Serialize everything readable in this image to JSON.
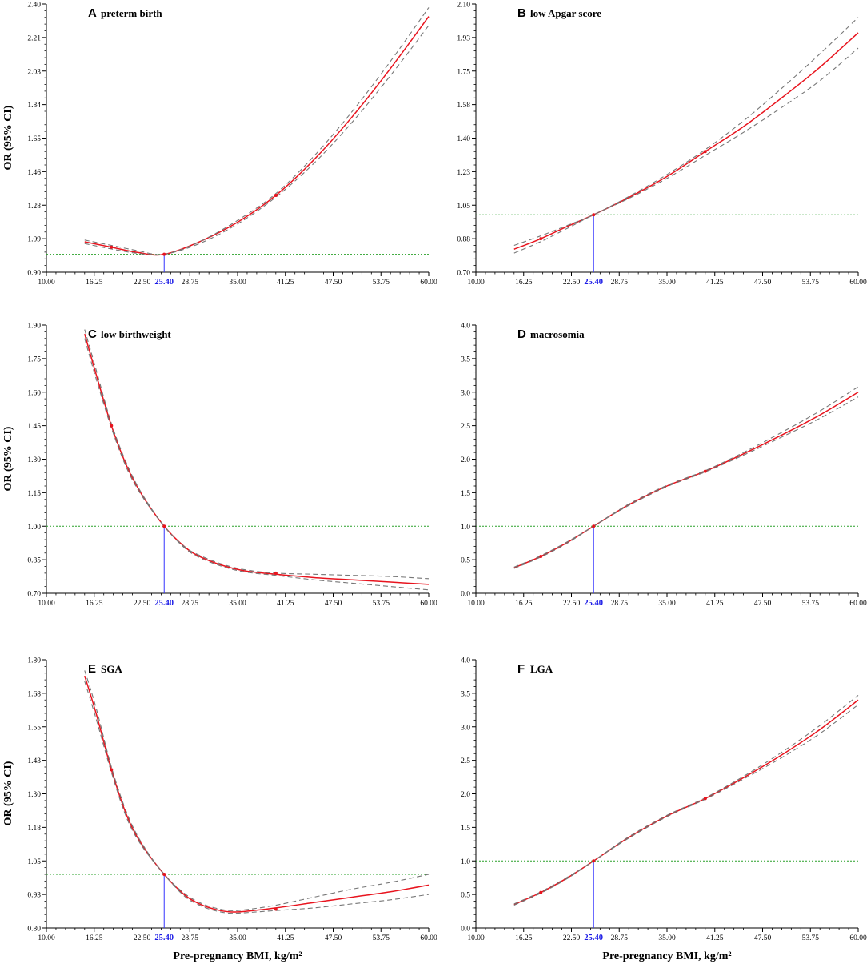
{
  "figure": {
    "ylabel": "OR (95% CI)",
    "xlabel": "Pre-pregnancy BMI, kg/m²",
    "ref_value_label": "25.40"
  },
  "chart_data": [
    {
      "type": "line",
      "letter": "A",
      "title": "preterm birth",
      "xlim": [
        10,
        60
      ],
      "ylim": [
        0.9,
        2.4
      ],
      "x_ticks": [
        "10.00",
        "16.25",
        "22.50",
        "28.75",
        "35.00",
        "41.25",
        "47.50",
        "53.75",
        "60.00"
      ],
      "y_ticks": [
        "0.90",
        "1.09",
        "1.28",
        "1.46",
        "1.65",
        "1.84",
        "2.03",
        "2.21",
        "2.40"
      ],
      "reference_x": 25.4,
      "reference_y": 1.0,
      "marked_points": {
        "x": [
          18.5,
          25.4,
          40.0
        ],
        "y": [
          1.04,
          1.0,
          1.33
        ]
      },
      "series": [
        {
          "role": "estimate",
          "color": "#e8141e",
          "x": [
            15,
            18.5,
            22,
            25.4,
            30,
            35,
            40,
            45,
            50,
            55,
            60
          ],
          "y": [
            1.07,
            1.04,
            1.01,
            1.0,
            1.07,
            1.18,
            1.33,
            1.53,
            1.77,
            2.04,
            2.33
          ]
        },
        {
          "role": "upper",
          "color": "#777777",
          "x": [
            15,
            18.5,
            22,
            25.4,
            30,
            35,
            40,
            45,
            50,
            55,
            60
          ],
          "y": [
            1.08,
            1.05,
            1.02,
            1.0,
            1.07,
            1.19,
            1.34,
            1.55,
            1.8,
            2.08,
            2.38
          ]
        },
        {
          "role": "lower",
          "color": "#777777",
          "x": [
            15,
            18.5,
            22,
            25.4,
            30,
            35,
            40,
            45,
            50,
            55,
            60
          ],
          "y": [
            1.06,
            1.03,
            1.005,
            1.0,
            1.06,
            1.17,
            1.32,
            1.51,
            1.74,
            2.0,
            2.28
          ]
        }
      ]
    },
    {
      "type": "line",
      "letter": "B",
      "title": "low Apgar score",
      "xlim": [
        10,
        60
      ],
      "ylim": [
        0.7,
        2.1
      ],
      "x_ticks": [
        "10.00",
        "16.25",
        "22.50",
        "28.75",
        "35.00",
        "41.25",
        "47.50",
        "53.75",
        "60.00"
      ],
      "y_ticks": [
        "0.70",
        "0.88",
        "1.05",
        "1.23",
        "1.40",
        "1.58",
        "1.75",
        "1.93",
        "2.10"
      ],
      "reference_x": 25.4,
      "reference_y": 1.0,
      "marked_points": {
        "x": [
          18.5,
          25.4,
          40.0
        ],
        "y": [
          0.875,
          1.0,
          1.33
        ]
      },
      "series": [
        {
          "role": "estimate",
          "color": "#e8141e",
          "x": [
            15,
            18.5,
            22,
            25.4,
            30,
            35,
            40,
            45,
            50,
            55,
            60
          ],
          "y": [
            0.82,
            0.875,
            0.94,
            1.0,
            1.09,
            1.2,
            1.33,
            1.46,
            1.61,
            1.77,
            1.95
          ]
        },
        {
          "role": "upper",
          "color": "#777777",
          "x": [
            15,
            18.5,
            22,
            25.4,
            30,
            35,
            40,
            45,
            50,
            55,
            60
          ],
          "y": [
            0.84,
            0.89,
            0.945,
            1.0,
            1.095,
            1.21,
            1.34,
            1.49,
            1.66,
            1.84,
            2.03
          ]
        },
        {
          "role": "lower",
          "color": "#777777",
          "x": [
            15,
            18.5,
            22,
            25.4,
            30,
            35,
            40,
            45,
            50,
            55,
            60
          ],
          "y": [
            0.8,
            0.86,
            0.93,
            1.0,
            1.085,
            1.19,
            1.31,
            1.43,
            1.56,
            1.7,
            1.87
          ]
        }
      ]
    },
    {
      "type": "line",
      "letter": "C",
      "title": "low birthweight",
      "xlim": [
        10,
        60
      ],
      "ylim": [
        0.7,
        1.9
      ],
      "x_ticks": [
        "10.00",
        "16.25",
        "22.50",
        "28.75",
        "35.00",
        "41.25",
        "47.50",
        "53.75",
        "60.00"
      ],
      "y_ticks": [
        "0.70",
        "0.85",
        "1.00",
        "1.15",
        "1.30",
        "1.45",
        "1.60",
        "1.75",
        "1.90"
      ],
      "reference_x": 25.4,
      "reference_y": 1.0,
      "marked_points": {
        "x": [
          18.5,
          25.4,
          40.0
        ],
        "y": [
          1.45,
          1.0,
          0.79
        ]
      },
      "series": [
        {
          "role": "estimate",
          "color": "#e8141e",
          "x": [
            15,
            16.5,
            18.5,
            20.5,
            22.5,
            25.4,
            28,
            30,
            33,
            36,
            40,
            45,
            50,
            55,
            60
          ],
          "y": [
            1.86,
            1.68,
            1.45,
            1.27,
            1.14,
            1.0,
            0.91,
            0.865,
            0.825,
            0.8,
            0.785,
            0.77,
            0.76,
            0.75,
            0.74
          ]
        },
        {
          "role": "upper",
          "color": "#777777",
          "x": [
            15,
            16.5,
            18.5,
            20.5,
            22.5,
            25.4,
            28,
            30,
            33,
            36,
            40,
            45,
            50,
            55,
            60
          ],
          "y": [
            1.88,
            1.7,
            1.46,
            1.28,
            1.145,
            1.0,
            0.91,
            0.87,
            0.83,
            0.805,
            0.79,
            0.785,
            0.78,
            0.775,
            0.765
          ]
        },
        {
          "role": "lower",
          "color": "#777777",
          "x": [
            15,
            16.5,
            18.5,
            20.5,
            22.5,
            25.4,
            28,
            30,
            33,
            36,
            40,
            45,
            50,
            55,
            60
          ],
          "y": [
            1.84,
            1.66,
            1.44,
            1.26,
            1.135,
            1.0,
            0.905,
            0.86,
            0.82,
            0.795,
            0.78,
            0.76,
            0.745,
            0.73,
            0.715
          ]
        }
      ]
    },
    {
      "type": "line",
      "letter": "D",
      "title": "macrosomia",
      "xlim": [
        10,
        60
      ],
      "ylim": [
        0.0,
        4.0
      ],
      "x_ticks": [
        "10.00",
        "16.25",
        "22.50",
        "28.75",
        "35.00",
        "41.25",
        "47.50",
        "53.75",
        "60.00"
      ],
      "y_ticks": [
        "0.0",
        "0.5",
        "1.0",
        "1.5",
        "2.0",
        "2.5",
        "3.0",
        "3.5",
        "4.0"
      ],
      "reference_x": 25.4,
      "reference_y": 1.0,
      "marked_points": {
        "x": [
          18.5,
          25.4,
          40.0
        ],
        "y": [
          0.55,
          1.0,
          1.82
        ]
      },
      "series": [
        {
          "role": "estimate",
          "color": "#e8141e",
          "x": [
            15,
            18.5,
            22,
            25.4,
            30,
            35,
            40,
            45,
            50,
            55,
            60
          ],
          "y": [
            0.38,
            0.55,
            0.76,
            1.0,
            1.32,
            1.6,
            1.82,
            2.08,
            2.36,
            2.66,
            3.0
          ]
        },
        {
          "role": "upper",
          "color": "#777777",
          "x": [
            15,
            18.5,
            22,
            25.4,
            30,
            35,
            40,
            45,
            50,
            55,
            60
          ],
          "y": [
            0.39,
            0.56,
            0.77,
            1.0,
            1.33,
            1.61,
            1.83,
            2.1,
            2.4,
            2.72,
            3.08
          ]
        },
        {
          "role": "lower",
          "color": "#777777",
          "x": [
            15,
            18.5,
            22,
            25.4,
            30,
            35,
            40,
            45,
            50,
            55,
            60
          ],
          "y": [
            0.37,
            0.54,
            0.75,
            1.0,
            1.31,
            1.59,
            1.81,
            2.06,
            2.33,
            2.61,
            2.93
          ]
        }
      ]
    },
    {
      "type": "line",
      "letter": "E",
      "title": "SGA",
      "xlim": [
        10,
        60
      ],
      "ylim": [
        0.8,
        1.8
      ],
      "x_ticks": [
        "10.00",
        "16.25",
        "22.50",
        "28.75",
        "35.00",
        "41.25",
        "47.50",
        "53.75",
        "60.00"
      ],
      "y_ticks": [
        "0.80",
        "0.93",
        "1.05",
        "1.18",
        "1.30",
        "1.43",
        "1.55",
        "1.68",
        "1.80"
      ],
      "reference_x": 25.4,
      "reference_y": 1.0,
      "marked_points": {
        "x": [
          18.5,
          25.4,
          40.0
        ],
        "y": [
          1.39,
          1.0,
          0.87
        ]
      },
      "series": [
        {
          "role": "estimate",
          "color": "#e8141e",
          "x": [
            15,
            16.5,
            18.5,
            20.5,
            22.5,
            25.4,
            28,
            30,
            32,
            34,
            36,
            40,
            45,
            50,
            55,
            60
          ],
          "y": [
            1.74,
            1.6,
            1.39,
            1.22,
            1.11,
            1.0,
            0.925,
            0.89,
            0.87,
            0.86,
            0.862,
            0.875,
            0.895,
            0.915,
            0.935,
            0.96
          ]
        },
        {
          "role": "upper",
          "color": "#777777",
          "x": [
            15,
            16.5,
            18.5,
            20.5,
            22.5,
            25.4,
            28,
            30,
            32,
            34,
            36,
            40,
            45,
            50,
            55,
            60
          ],
          "y": [
            1.76,
            1.62,
            1.4,
            1.23,
            1.115,
            1.0,
            0.93,
            0.895,
            0.875,
            0.865,
            0.868,
            0.885,
            0.915,
            0.945,
            0.97,
            1.0
          ]
        },
        {
          "role": "lower",
          "color": "#777777",
          "x": [
            15,
            16.5,
            18.5,
            20.5,
            22.5,
            25.4,
            28,
            30,
            32,
            34,
            36,
            40,
            45,
            50,
            55,
            60
          ],
          "y": [
            1.72,
            1.58,
            1.38,
            1.21,
            1.105,
            1.0,
            0.92,
            0.885,
            0.865,
            0.855,
            0.857,
            0.865,
            0.875,
            0.89,
            0.905,
            0.925
          ]
        }
      ]
    },
    {
      "type": "line",
      "letter": "F",
      "title": "LGA",
      "xlim": [
        10,
        60
      ],
      "ylim": [
        0.0,
        4.0
      ],
      "x_ticks": [
        "10.00",
        "16.25",
        "22.50",
        "28.75",
        "35.00",
        "41.25",
        "47.50",
        "53.75",
        "60.00"
      ],
      "y_ticks": [
        "0.0",
        "0.5",
        "1.0",
        "1.5",
        "2.0",
        "2.5",
        "3.0",
        "3.5",
        "4.0"
      ],
      "reference_x": 25.4,
      "reference_y": 1.0,
      "marked_points": {
        "x": [
          18.5,
          25.4,
          40.0
        ],
        "y": [
          0.53,
          1.0,
          1.93
        ]
      },
      "series": [
        {
          "role": "estimate",
          "color": "#e8141e",
          "x": [
            15,
            18.5,
            22,
            25.4,
            30,
            35,
            40,
            45,
            50,
            55,
            60
          ],
          "y": [
            0.35,
            0.53,
            0.75,
            1.0,
            1.35,
            1.67,
            1.93,
            2.24,
            2.58,
            2.96,
            3.4
          ]
        },
        {
          "role": "upper",
          "color": "#777777",
          "x": [
            15,
            18.5,
            22,
            25.4,
            30,
            35,
            40,
            45,
            50,
            55,
            60
          ],
          "y": [
            0.36,
            0.54,
            0.76,
            1.0,
            1.36,
            1.68,
            1.94,
            2.26,
            2.62,
            3.02,
            3.47
          ]
        },
        {
          "role": "lower",
          "color": "#777777",
          "x": [
            15,
            18.5,
            22,
            25.4,
            30,
            35,
            40,
            45,
            50,
            55,
            60
          ],
          "y": [
            0.34,
            0.52,
            0.74,
            1.0,
            1.34,
            1.66,
            1.92,
            2.22,
            2.54,
            2.9,
            3.33
          ]
        }
      ]
    }
  ]
}
